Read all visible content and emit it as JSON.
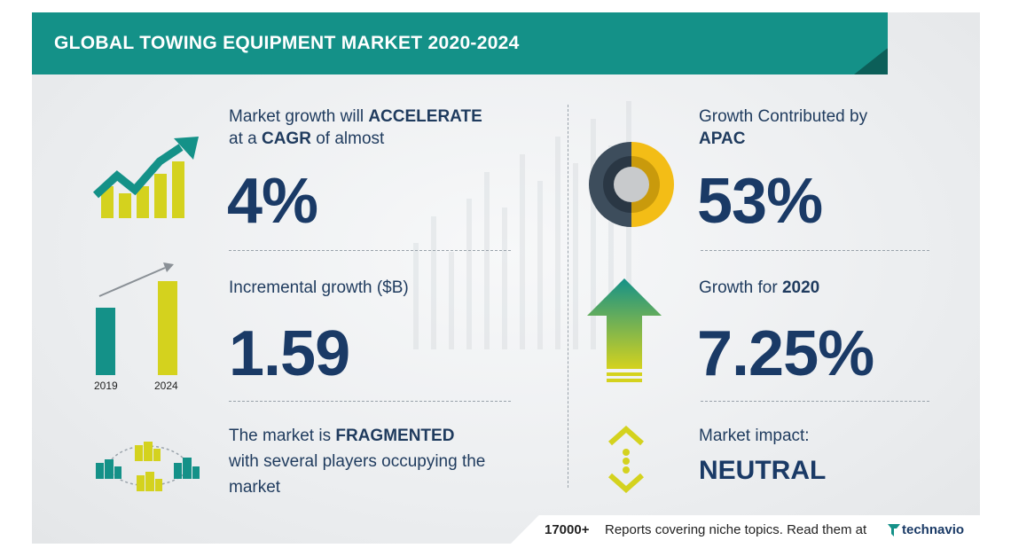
{
  "header": {
    "title": "GLOBAL TOWING EQUIPMENT MARKET 2020-2024"
  },
  "cagr": {
    "line1_prefix": "Market growth will ",
    "line1_bold": "ACCELERATE",
    "line2_prefix": "at a ",
    "line2_bold": "CAGR",
    "line2_suffix": " of almost",
    "value": "4%"
  },
  "incremental": {
    "label": "Incremental growth ($B)",
    "value": "1.59",
    "chart": {
      "years": [
        "2019",
        "2024"
      ]
    }
  },
  "market": {
    "line1_prefix": "The market is ",
    "line1_bold": "FRAGMENTED",
    "line2": "with several players occupying the",
    "line3": "market"
  },
  "region": {
    "label": "Growth Contributed by",
    "name": "APAC",
    "value": "53%"
  },
  "growth2020": {
    "label_prefix": "Growth for ",
    "year": "2020",
    "value": "7.25%"
  },
  "impact": {
    "label": "Market impact:",
    "value": "NEUTRAL"
  },
  "footer": {
    "count": "17000+",
    "text": "Reports covering niche topics. Read them at",
    "brand": "technavio"
  },
  "colors": {
    "teal": "#149188",
    "navy": "#1a3a66",
    "yellow": "#d4d21e",
    "gold": "#f3bd16",
    "slate": "#3d4d5c"
  }
}
